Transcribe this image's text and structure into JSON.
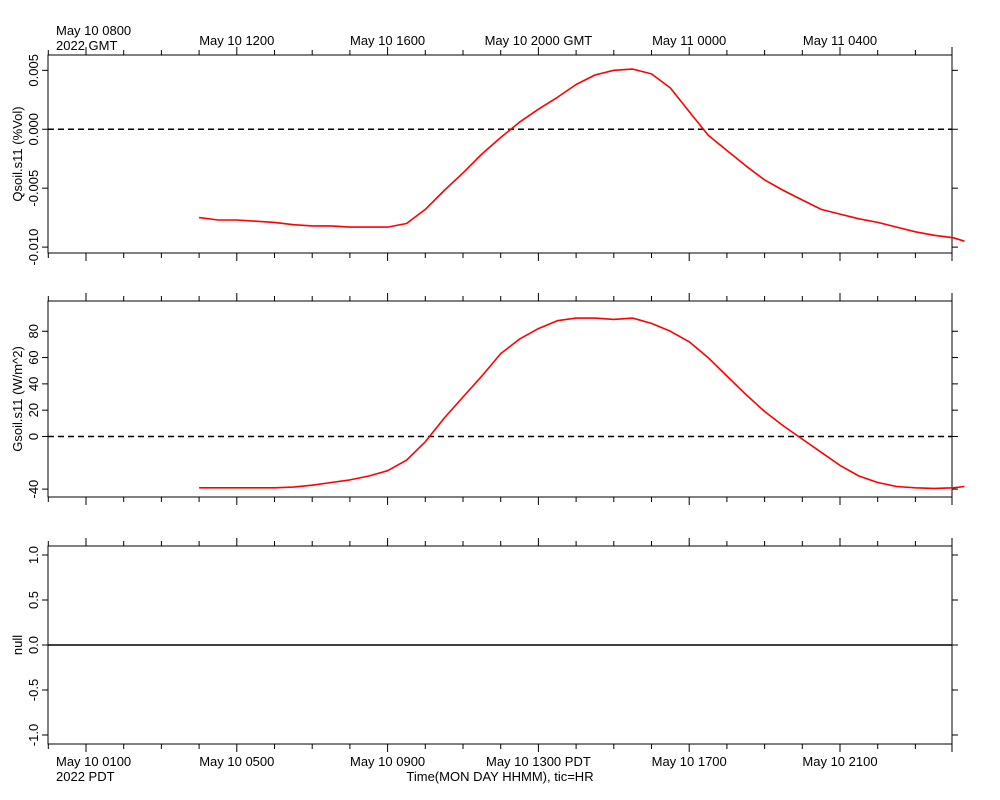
{
  "top_axis": {
    "labels": [
      "May 10 0800",
      "May 10 1200",
      "May 10 1600",
      "May 10 2000 GMT",
      "May 11 0000",
      "May 11 0400"
    ],
    "year_label": "2022 GMT"
  },
  "bottom_axis": {
    "labels": [
      "May 10 0100",
      "May 10 0500",
      "May 10 0900",
      "May 10 1300 PDT",
      "May 10 1700",
      "May 10 2100"
    ],
    "year_label": "2022 PDT",
    "title": "Time(MON DAY HHMM), tic=HR"
  },
  "colors": {
    "series": "#ff0000",
    "axis": "#000000",
    "zero_line": "#000000"
  },
  "chart_data": [
    {
      "type": "line",
      "ylabel": "Qsoil.s11 (%Vol)",
      "ylim": [
        -0.0105,
        0.0063
      ],
      "yticks": [
        0.005,
        0.0,
        -0.005,
        -0.01
      ],
      "ytick_labels": [
        "0.005",
        "0.000",
        "-0.005",
        "-0.010"
      ],
      "xlim_hours_pdt": [
        0,
        23.3
      ],
      "zero_line": "dashed",
      "series": [
        {
          "x": [
            3.0,
            3.5,
            4.0,
            4.5,
            5.0,
            5.5,
            6.0,
            6.5,
            7.0,
            7.5,
            8.0,
            8.5,
            9.0,
            9.5,
            10.0,
            10.5,
            11.0,
            11.5,
            12.0,
            12.5,
            13.0,
            13.5,
            14.0,
            14.5,
            15.0,
            15.5,
            16.0,
            16.5,
            17.0,
            17.5,
            18.0,
            18.5,
            19.0,
            19.5,
            20.0,
            20.5,
            21.0,
            21.5,
            22.0,
            22.5,
            23.0,
            23.3
          ],
          "y": [
            -0.0075,
            -0.0077,
            -0.0077,
            -0.0078,
            -0.0079,
            -0.0081,
            -0.0082,
            -0.0082,
            -0.0083,
            -0.0083,
            -0.0083,
            -0.008,
            -0.0068,
            -0.0052,
            -0.0037,
            -0.0021,
            -0.0007,
            0.0006,
            0.0017,
            0.0027,
            0.0038,
            0.0046,
            0.005,
            0.0051,
            0.0047,
            0.0035,
            0.0015,
            -0.0005,
            -0.0018,
            -0.0031,
            -0.0043,
            -0.0052,
            -0.006,
            -0.0068,
            -0.0072,
            -0.0076,
            -0.0079,
            -0.0083,
            -0.0087,
            -0.009,
            -0.0092,
            -0.0095
          ]
        }
      ]
    },
    {
      "type": "line",
      "ylabel": "Gsoil.s11 (W/m^2)",
      "ylim": [
        -46,
        103
      ],
      "yticks": [
        80,
        60,
        40,
        20,
        0,
        -40
      ],
      "ytick_labels": [
        "80",
        "60",
        "40",
        "20",
        "0",
        "-40"
      ],
      "xlim_hours_pdt": [
        0,
        23.3
      ],
      "zero_line": "dashed",
      "series": [
        {
          "x": [
            3.0,
            3.5,
            4.0,
            4.5,
            5.0,
            5.5,
            6.0,
            6.5,
            7.0,
            7.5,
            8.0,
            8.5,
            9.0,
            9.5,
            10.0,
            10.5,
            11.0,
            11.5,
            12.0,
            12.5,
            13.0,
            13.5,
            14.0,
            14.5,
            15.0,
            15.5,
            16.0,
            16.5,
            17.0,
            17.5,
            18.0,
            18.5,
            19.0,
            19.5,
            20.0,
            20.5,
            21.0,
            21.5,
            22.0,
            22.5,
            23.0,
            23.3
          ],
          "y": [
            -39,
            -39,
            -39,
            -39,
            -39,
            -38.5,
            -37,
            -35,
            -33,
            -30,
            -26,
            -18,
            -4,
            14,
            30,
            46,
            63,
            74,
            82,
            88,
            90,
            90,
            89,
            90,
            86,
            80,
            72,
            60,
            46,
            32,
            19,
            8,
            -2,
            -12,
            -22,
            -30,
            -35,
            -38,
            -39,
            -39.5,
            -39,
            -38
          ]
        }
      ]
    },
    {
      "type": "line",
      "ylabel": "null",
      "ylim": [
        -1.1,
        1.1
      ],
      "yticks": [
        1.0,
        0.5,
        0.0,
        -0.5,
        -1.0
      ],
      "ytick_labels": [
        "1.0",
        "0.5",
        "0.0",
        "-0.5",
        "-1.0"
      ],
      "xlim_hours_pdt": [
        0,
        23.3
      ],
      "zero_line": "solid",
      "series": []
    }
  ]
}
